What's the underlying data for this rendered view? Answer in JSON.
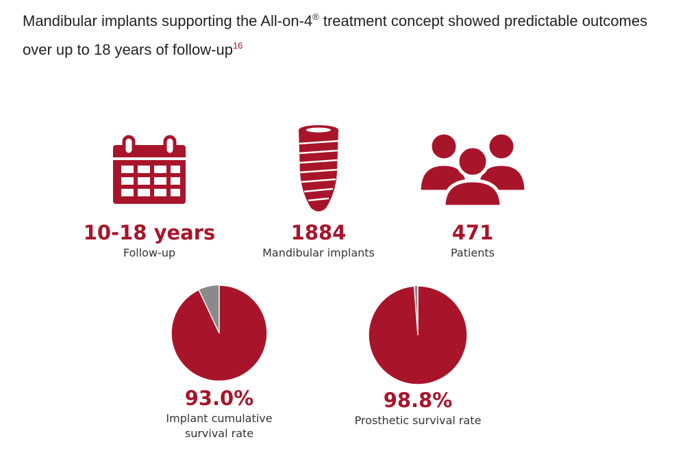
{
  "header": {
    "title": "Mandibular implants supporting the All-on-4",
    "title_mark": "®",
    "title_rest": " treatment concept showed predictable outcomes over up to 18 years of follow-up",
    "title_ref": "16"
  },
  "stats": [
    {
      "value": "10-18 years",
      "label": "Follow-up"
    },
    {
      "value": "1884",
      "label": "Mandibular implants"
    },
    {
      "value": "471",
      "label": "Patients"
    }
  ],
  "pies": [
    {
      "value": 93.0,
      "value_label": "93.0%",
      "label": "Implant cumulative survival rate"
    },
    {
      "value": 98.8,
      "value_label": "98.8%",
      "label": "Prosthetic survival rate"
    }
  ]
}
